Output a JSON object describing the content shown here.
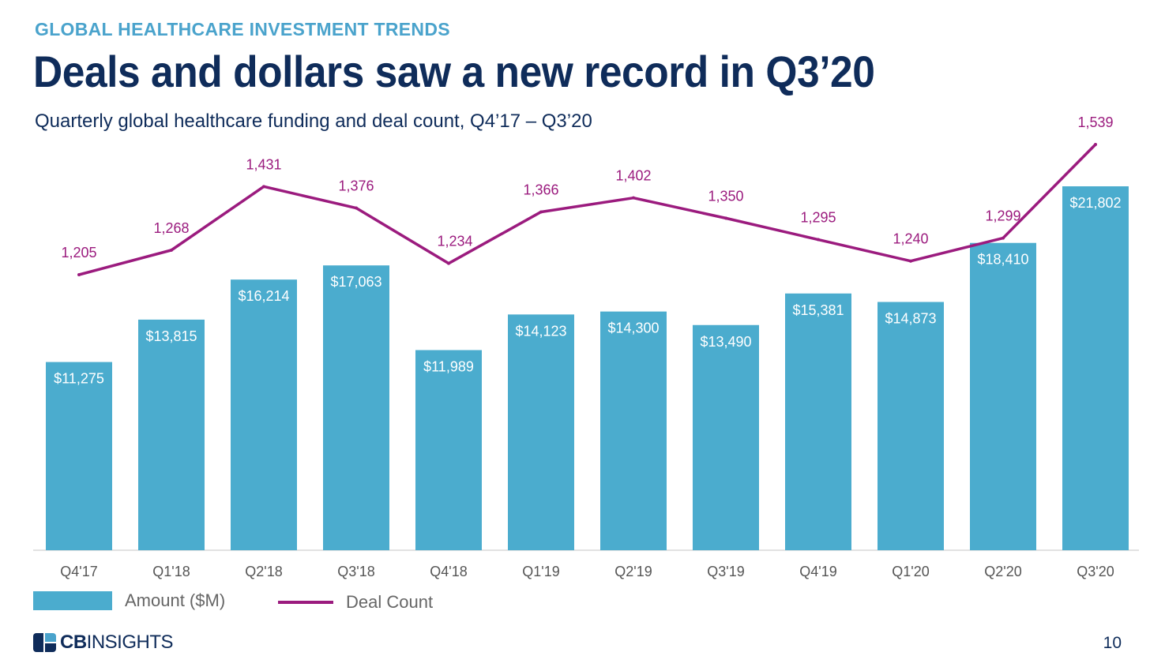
{
  "header": {
    "kicker": "GLOBAL HEALTHCARE INVESTMENT TRENDS",
    "title": "Deals and dollars saw a new record in Q3’20",
    "subtitle": "Quarterly global healthcare funding and deal count, Q4’17 – Q3’20"
  },
  "chart_data": {
    "type": "bar",
    "categories": [
      "Q4'17",
      "Q1'18",
      "Q2'18",
      "Q3'18",
      "Q4'18",
      "Q1'19",
      "Q2'19",
      "Q3'19",
      "Q4'19",
      "Q1'20",
      "Q2'20",
      "Q3'20"
    ],
    "series": [
      {
        "name": "Amount ($M)",
        "type": "bar",
        "color": "#4bacce",
        "values": [
          11275,
          13815,
          16214,
          17063,
          11989,
          14123,
          14300,
          13490,
          15381,
          14873,
          18410,
          21802
        ],
        "labels": [
          "$11,275",
          "$13,815",
          "$16,214",
          "$17,063",
          "$11,989",
          "$14,123",
          "$14,300",
          "$13,490",
          "$15,381",
          "$14,873",
          "$18,410",
          "$21,802"
        ]
      },
      {
        "name": "Deal Count",
        "type": "line",
        "color": "#9b1b7e",
        "values": [
          1205,
          1268,
          1431,
          1376,
          1234,
          1366,
          1402,
          1350,
          1295,
          1240,
          1299,
          1539
        ],
        "labels": [
          "1,205",
          "1,268",
          "1,431",
          "1,376",
          "1,234",
          "1,366",
          "1,402",
          "1,350",
          "1,295",
          "1,240",
          "1,299",
          "1,539"
        ]
      }
    ],
    "legend_position": "bottom-left",
    "grid": false
  },
  "legend": {
    "amount_label": "Amount ($M)",
    "deal_label": "Deal Count"
  },
  "footer": {
    "logo_bold": "CB",
    "logo_rest": "INSIGHTS",
    "page_number": "10"
  }
}
